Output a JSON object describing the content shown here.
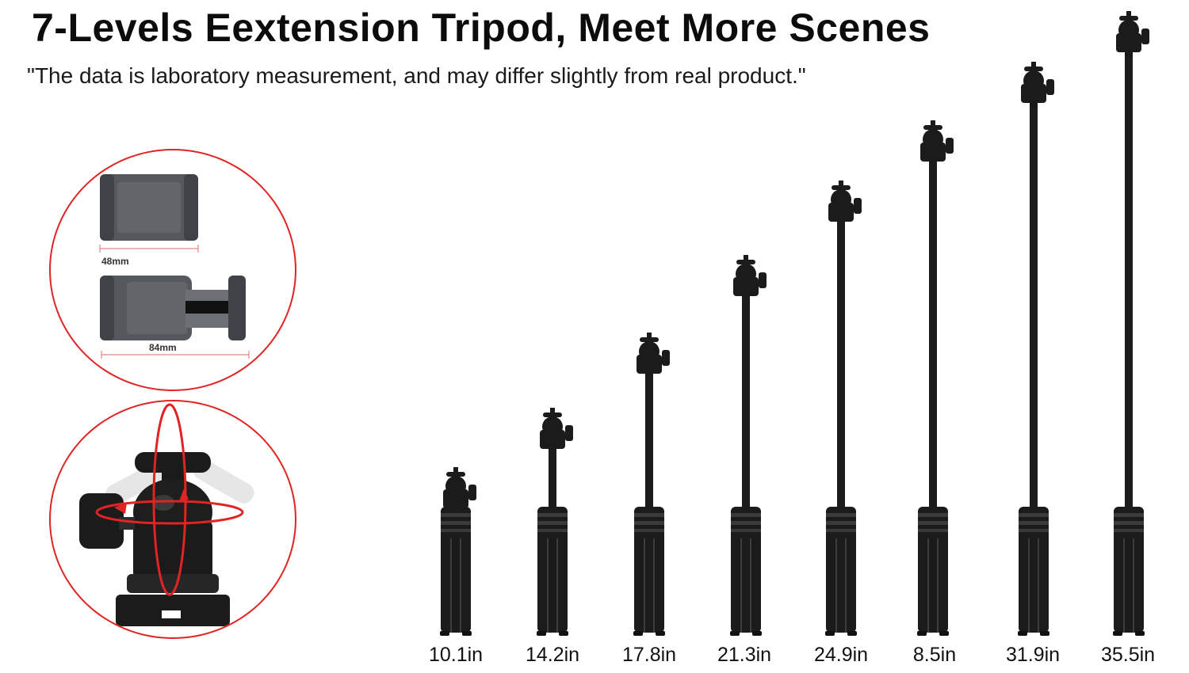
{
  "title": "7-Levels Eextension Tripod, Meet More Scenes",
  "subtitle": "\"The data is laboratory measurement, and may differ slightly from real product.\"",
  "clamp_detail": {
    "closed_width_label": "48mm",
    "open_width_label": "84mm"
  },
  "ball_head_detail": {
    "icon": "ball-head-rotation-icon"
  },
  "tripod_heights": [
    {
      "label": "10.1in"
    },
    {
      "label": "14.2in"
    },
    {
      "label": "17.8in"
    },
    {
      "label": "21.3in"
    },
    {
      "label": "24.9in"
    },
    {
      "label": "8.5in"
    },
    {
      "label": "31.9in"
    },
    {
      "label": "35.5in"
    }
  ],
  "colors": {
    "accent": "#e02424",
    "product": "#1b1b1b"
  }
}
